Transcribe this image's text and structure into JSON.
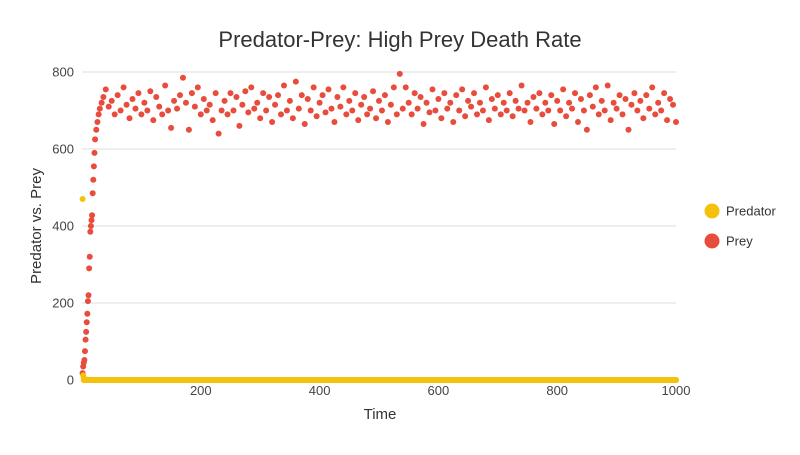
{
  "chart_data": {
    "type": "scatter",
    "title": "Predator-Prey: High Prey Death Rate",
    "xlabel": "Time",
    "ylabel": "Predator vs. Prey",
    "xlim": [
      0,
      1000
    ],
    "ylim": [
      0,
      800
    ],
    "x_ticks": [
      200,
      400,
      600,
      800,
      1000
    ],
    "y_ticks": [
      0,
      200,
      400,
      600,
      800
    ],
    "grid": true,
    "legend_position": "right",
    "series": [
      {
        "name": "Predator",
        "color": "#F4C20D",
        "points": [
          [
            1,
            470
          ],
          [
            2,
            12
          ],
          [
            3,
            5
          ],
          [
            5,
            2
          ],
          [
            8,
            1
          ],
          [
            12,
            0.5
          ],
          [
            20,
            0.2
          ],
          [
            50,
            0.1
          ],
          [
            100,
            0.05
          ],
          [
            200,
            0.02
          ],
          [
            300,
            0.01
          ],
          [
            400,
            0.01
          ],
          [
            500,
            0
          ],
          [
            600,
            0
          ],
          [
            700,
            0
          ],
          [
            800,
            0
          ],
          [
            900,
            0
          ],
          [
            1000,
            0
          ]
        ]
      },
      {
        "name": "Prey",
        "color": "#E84C3D",
        "points": [
          [
            1,
            18
          ],
          [
            2,
            35
          ],
          [
            3,
            45
          ],
          [
            4,
            52
          ],
          [
            5,
            75
          ],
          [
            6,
            105
          ],
          [
            7,
            125
          ],
          [
            8,
            150
          ],
          [
            9,
            172
          ],
          [
            10,
            205
          ],
          [
            11,
            220
          ],
          [
            12,
            290
          ],
          [
            13,
            320
          ],
          [
            14,
            385
          ],
          [
            15,
            400
          ],
          [
            16,
            415
          ],
          [
            17,
            428
          ],
          [
            18,
            485
          ],
          [
            19,
            520
          ],
          [
            20,
            555
          ],
          [
            21,
            590
          ],
          [
            22,
            625
          ],
          [
            24,
            650
          ],
          [
            26,
            670
          ],
          [
            28,
            690
          ],
          [
            30,
            705
          ],
          [
            33,
            720
          ],
          [
            36,
            735
          ],
          [
            40,
            755
          ],
          [
            45,
            710
          ],
          [
            50,
            725
          ],
          [
            55,
            690
          ],
          [
            60,
            740
          ],
          [
            65,
            700
          ],
          [
            70,
            760
          ],
          [
            75,
            715
          ],
          [
            80,
            680
          ],
          [
            85,
            730
          ],
          [
            90,
            705
          ],
          [
            95,
            745
          ],
          [
            100,
            690
          ],
          [
            105,
            720
          ],
          [
            110,
            700
          ],
          [
            115,
            750
          ],
          [
            120,
            675
          ],
          [
            125,
            735
          ],
          [
            130,
            710
          ],
          [
            135,
            690
          ],
          [
            140,
            765
          ],
          [
            145,
            700
          ],
          [
            150,
            655
          ],
          [
            155,
            725
          ],
          [
            160,
            705
          ],
          [
            165,
            740
          ],
          [
            170,
            785
          ],
          [
            175,
            720
          ],
          [
            180,
            650
          ],
          [
            185,
            745
          ],
          [
            190,
            710
          ],
          [
            195,
            760
          ],
          [
            200,
            690
          ],
          [
            205,
            730
          ],
          [
            210,
            700
          ],
          [
            215,
            715
          ],
          [
            220,
            675
          ],
          [
            225,
            745
          ],
          [
            230,
            640
          ],
          [
            235,
            700
          ],
          [
            240,
            725
          ],
          [
            245,
            690
          ],
          [
            250,
            745
          ],
          [
            255,
            700
          ],
          [
            260,
            735
          ],
          [
            265,
            660
          ],
          [
            270,
            715
          ],
          [
            275,
            750
          ],
          [
            280,
            695
          ],
          [
            285,
            760
          ],
          [
            290,
            705
          ],
          [
            295,
            720
          ],
          [
            300,
            680
          ],
          [
            305,
            745
          ],
          [
            310,
            700
          ],
          [
            315,
            735
          ],
          [
            320,
            670
          ],
          [
            325,
            715
          ],
          [
            330,
            740
          ],
          [
            335,
            690
          ],
          [
            340,
            765
          ],
          [
            345,
            700
          ],
          [
            350,
            725
          ],
          [
            355,
            680
          ],
          [
            360,
            775
          ],
          [
            365,
            705
          ],
          [
            370,
            740
          ],
          [
            375,
            665
          ],
          [
            380,
            730
          ],
          [
            385,
            700
          ],
          [
            390,
            760
          ],
          [
            395,
            685
          ],
          [
            400,
            720
          ],
          [
            405,
            740
          ],
          [
            410,
            695
          ],
          [
            415,
            755
          ],
          [
            420,
            705
          ],
          [
            425,
            670
          ],
          [
            430,
            735
          ],
          [
            435,
            710
          ],
          [
            440,
            760
          ],
          [
            445,
            690
          ],
          [
            450,
            725
          ],
          [
            455,
            700
          ],
          [
            460,
            745
          ],
          [
            465,
            675
          ],
          [
            470,
            715
          ],
          [
            475,
            735
          ],
          [
            480,
            690
          ],
          [
            485,
            705
          ],
          [
            490,
            750
          ],
          [
            495,
            680
          ],
          [
            500,
            725
          ],
          [
            505,
            700
          ],
          [
            510,
            740
          ],
          [
            515,
            670
          ],
          [
            520,
            715
          ],
          [
            525,
            760
          ],
          [
            530,
            690
          ],
          [
            535,
            795
          ],
          [
            540,
            705
          ],
          [
            545,
            760
          ],
          [
            550,
            720
          ],
          [
            555,
            690
          ],
          [
            560,
            745
          ],
          [
            565,
            705
          ],
          [
            570,
            735
          ],
          [
            575,
            665
          ],
          [
            580,
            720
          ],
          [
            585,
            695
          ],
          [
            590,
            755
          ],
          [
            595,
            700
          ],
          [
            600,
            730
          ],
          [
            605,
            680
          ],
          [
            610,
            745
          ],
          [
            615,
            705
          ],
          [
            620,
            720
          ],
          [
            625,
            670
          ],
          [
            630,
            740
          ],
          [
            635,
            700
          ],
          [
            640,
            755
          ],
          [
            645,
            685
          ],
          [
            650,
            725
          ],
          [
            655,
            710
          ],
          [
            660,
            745
          ],
          [
            665,
            690
          ],
          [
            670,
            720
          ],
          [
            675,
            700
          ],
          [
            680,
            760
          ],
          [
            685,
            675
          ],
          [
            690,
            730
          ],
          [
            695,
            705
          ],
          [
            700,
            740
          ],
          [
            705,
            690
          ],
          [
            710,
            720
          ],
          [
            715,
            700
          ],
          [
            720,
            745
          ],
          [
            725,
            685
          ],
          [
            730,
            725
          ],
          [
            735,
            705
          ],
          [
            740,
            765
          ],
          [
            745,
            700
          ],
          [
            750,
            720
          ],
          [
            755,
            670
          ],
          [
            760,
            735
          ],
          [
            765,
            705
          ],
          [
            770,
            745
          ],
          [
            775,
            690
          ],
          [
            780,
            720
          ],
          [
            785,
            700
          ],
          [
            790,
            740
          ],
          [
            795,
            665
          ],
          [
            800,
            725
          ],
          [
            805,
            700
          ],
          [
            810,
            755
          ],
          [
            815,
            685
          ],
          [
            820,
            720
          ],
          [
            825,
            705
          ],
          [
            830,
            745
          ],
          [
            835,
            670
          ],
          [
            840,
            730
          ],
          [
            845,
            700
          ],
          [
            850,
            650
          ],
          [
            855,
            740
          ],
          [
            860,
            710
          ],
          [
            865,
            760
          ],
          [
            870,
            690
          ],
          [
            875,
            725
          ],
          [
            880,
            700
          ],
          [
            885,
            765
          ],
          [
            890,
            675
          ],
          [
            895,
            720
          ],
          [
            900,
            705
          ],
          [
            905,
            740
          ],
          [
            910,
            690
          ],
          [
            915,
            730
          ],
          [
            920,
            650
          ],
          [
            925,
            715
          ],
          [
            930,
            745
          ],
          [
            935,
            700
          ],
          [
            940,
            725
          ],
          [
            945,
            680
          ],
          [
            950,
            740
          ],
          [
            955,
            705
          ],
          [
            960,
            760
          ],
          [
            965,
            690
          ],
          [
            970,
            720
          ],
          [
            975,
            700
          ],
          [
            980,
            745
          ],
          [
            985,
            675
          ],
          [
            990,
            730
          ],
          [
            995,
            715
          ],
          [
            1000,
            670
          ]
        ]
      }
    ]
  }
}
